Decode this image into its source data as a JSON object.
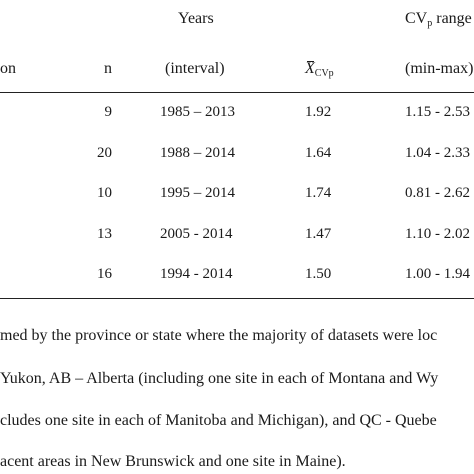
{
  "header": {
    "years_top": "Years",
    "cvp_top_main": "CV",
    "cvp_top_sub": "p",
    "cvp_top_rest": " range",
    "region_partial": "on",
    "n": "n",
    "years_bottom": "(interval)",
    "mean_x": "X",
    "mean_sub": "CVp",
    "range_bottom": "(min-max)"
  },
  "rows": [
    {
      "n": "9",
      "years": "1985 – 2013",
      "mean": "1.92",
      "range": "1.15 - 2.53"
    },
    {
      "n": "20",
      "years": "1988 – 2014",
      "mean": "1.64",
      "range": "1.04 - 2.33"
    },
    {
      "n": "10",
      "years": "1995 – 2014",
      "mean": "1.74",
      "range": "0.81 - 2.62"
    },
    {
      "n": "13",
      "years": "2005 - 2014",
      "mean": "1.47",
      "range": "1.10 - 2.02"
    },
    {
      "n": "16",
      "years": "1994 - 2014",
      "mean": "1.50",
      "range": "1.00 - 1.94"
    }
  ],
  "notes": [
    "med by the province or state where the majority of datasets were loc",
    "Yukon, AB – Alberta (including one site in each of Montana and Wy",
    "cludes one site in each of Manitoba and Michigan), and QC - Quebe",
    "acent areas in New Brunswick and one site in Maine)."
  ]
}
